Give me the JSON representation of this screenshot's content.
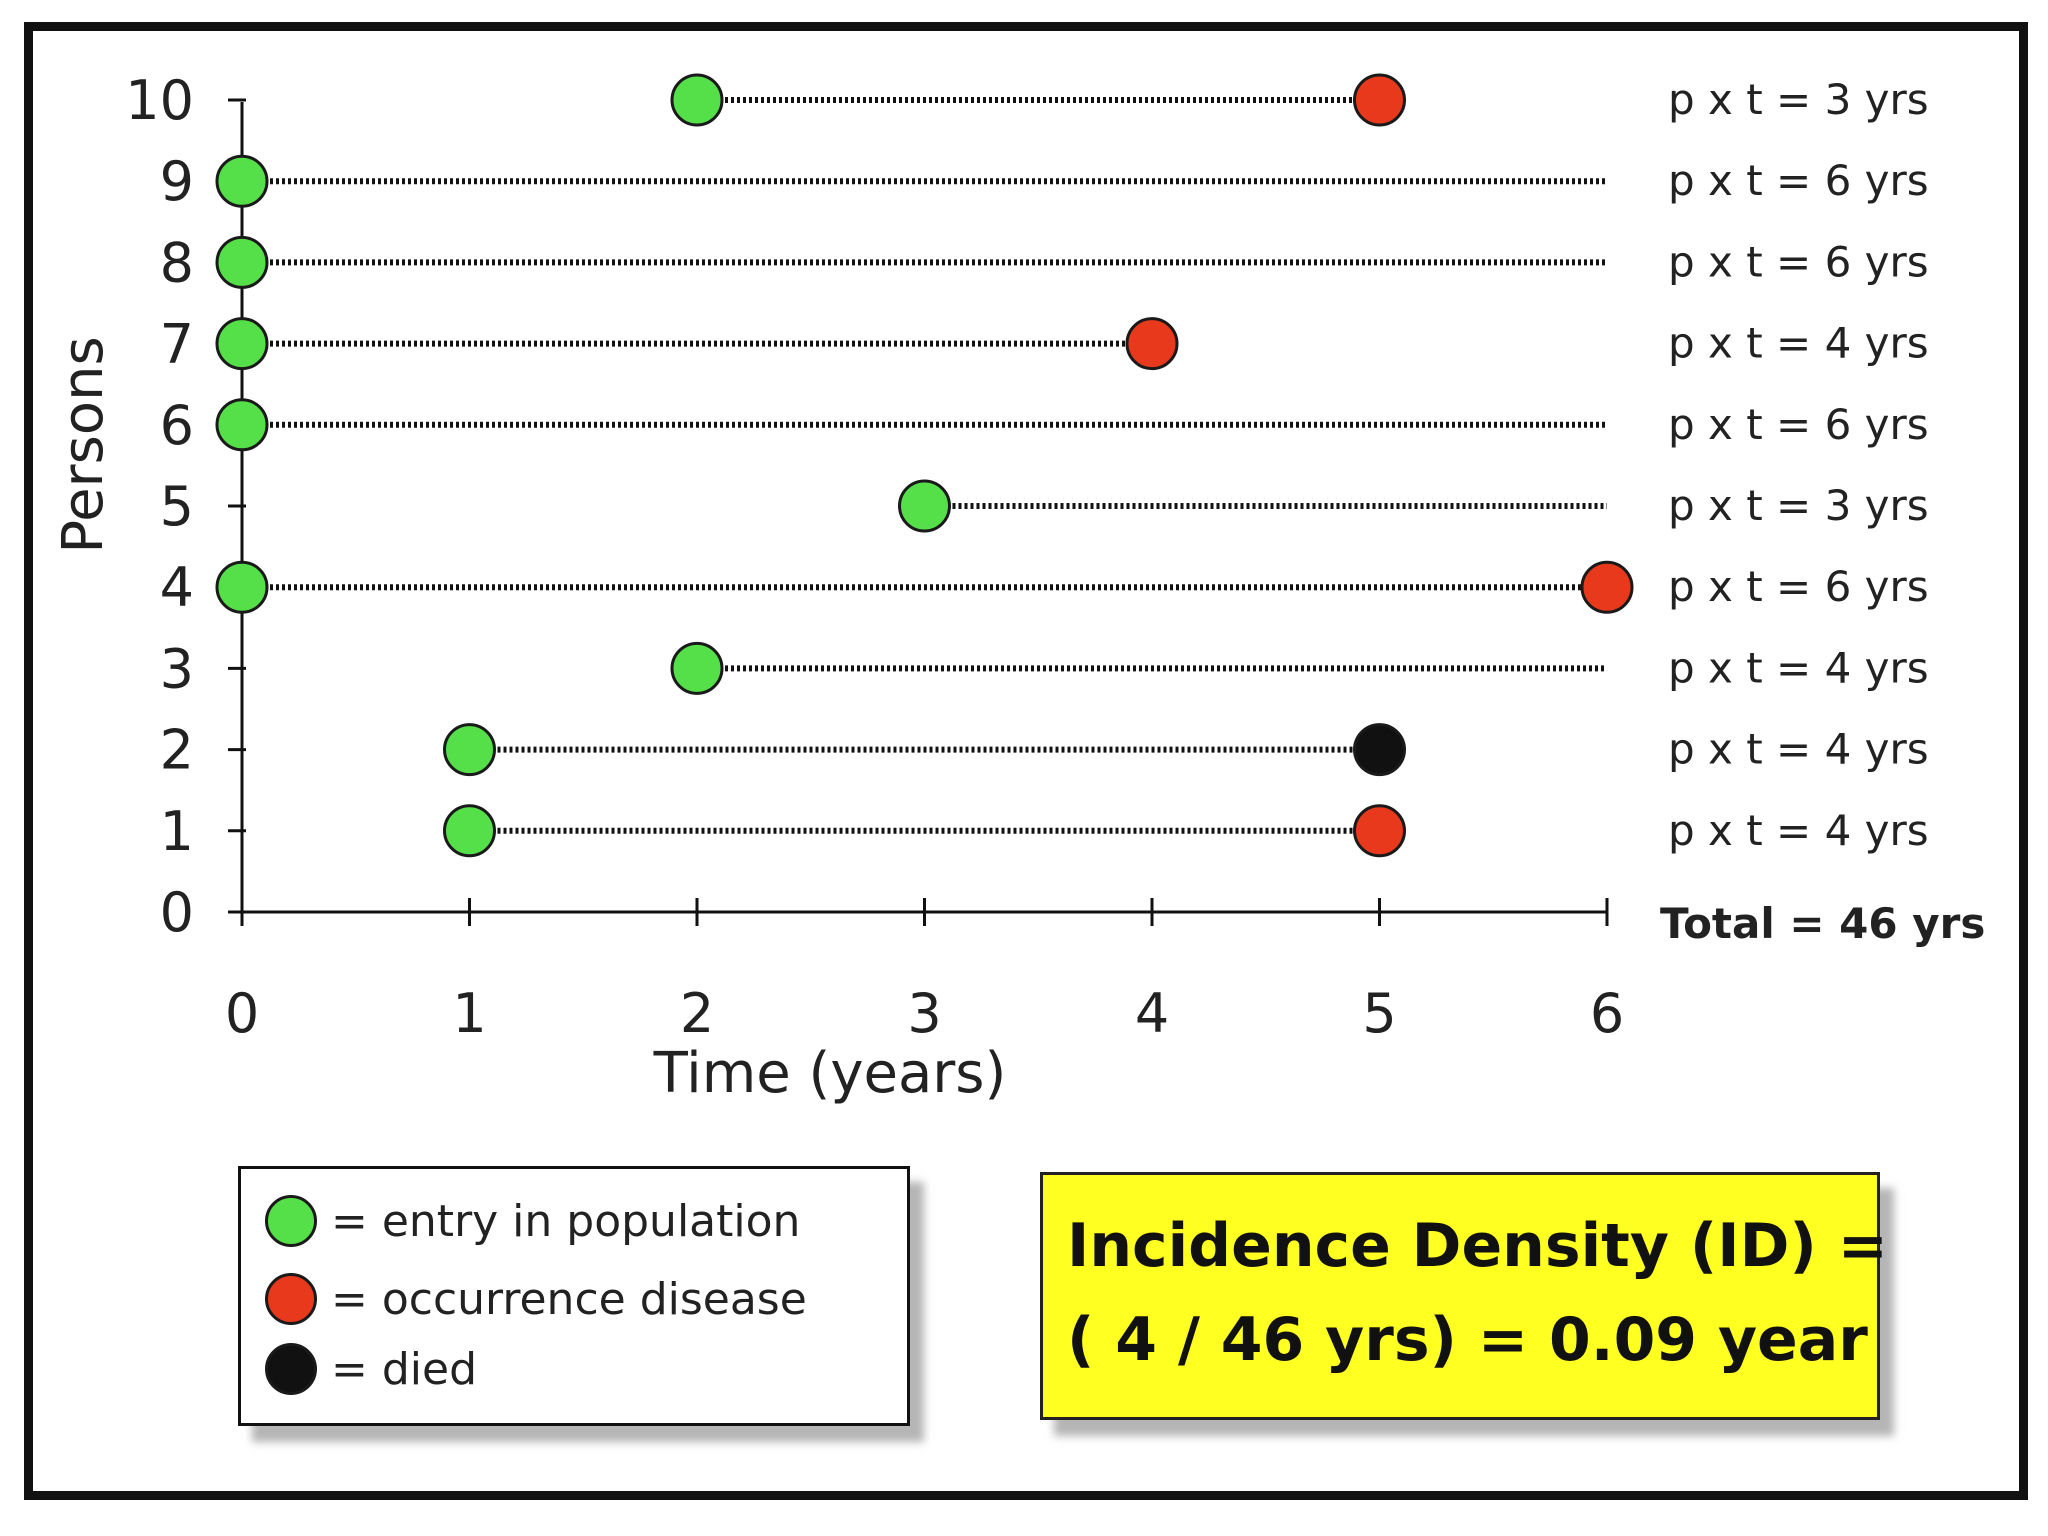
{
  "chart_data": {
    "type": "scatter",
    "title": "",
    "xlabel": "Time (years)",
    "ylabel": "Persons",
    "xlim": [
      0,
      6
    ],
    "ylim": [
      0,
      10
    ],
    "x_ticks": [
      "0",
      "1",
      "2",
      "3",
      "4",
      "5",
      "6"
    ],
    "y_ticks": [
      "0",
      "1",
      "2",
      "3",
      "4",
      "5",
      "6",
      "7",
      "8",
      "9",
      "10"
    ],
    "persons": [
      {
        "person": 10,
        "entry": 2,
        "end": 5,
        "end_event": "disease",
        "label": "p x t = 3 yrs"
      },
      {
        "person": 9,
        "entry": 0,
        "end": 6,
        "end_event": "none",
        "label": "p x t = 6 yrs"
      },
      {
        "person": 8,
        "entry": 0,
        "end": 6,
        "end_event": "none",
        "label": "p x t = 6 yrs"
      },
      {
        "person": 7,
        "entry": 0,
        "end": 4,
        "end_event": "disease",
        "label": "p x t = 4 yrs"
      },
      {
        "person": 6,
        "entry": 0,
        "end": 6,
        "end_event": "none",
        "label": "p x t = 6 yrs"
      },
      {
        "person": 5,
        "entry": 3,
        "end": 6,
        "end_event": "none",
        "label": "p x t = 3 yrs"
      },
      {
        "person": 4,
        "entry": 0,
        "end": 6,
        "end_event": "disease",
        "label": "p x t = 6 yrs"
      },
      {
        "person": 3,
        "entry": 2,
        "end": 6,
        "end_event": "none",
        "label": "p x t = 4 yrs"
      },
      {
        "person": 2,
        "entry": 1,
        "end": 5,
        "end_event": "died",
        "label": "p x t = 4 yrs"
      },
      {
        "person": 1,
        "entry": 1,
        "end": 5,
        "end_event": "disease",
        "label": "p x t = 4 yrs"
      }
    ],
    "total_label": "Total = 46 yrs",
    "legend": [
      {
        "key": "entry",
        "label": "= entry in population",
        "color": "#55e04a"
      },
      {
        "key": "disease",
        "label": "= occurrence disease",
        "color": "#e8391c"
      },
      {
        "key": "died",
        "label": "= died",
        "color": "#111111"
      }
    ],
    "annotation": {
      "line1": "Incidence Density (ID) =",
      "line2": "( 4 / 46 yrs) = 0.09 year"
    }
  },
  "colors": {
    "entry": "#55e04a",
    "disease": "#e8391c",
    "died": "#111111",
    "highlight": "#ffff22"
  }
}
